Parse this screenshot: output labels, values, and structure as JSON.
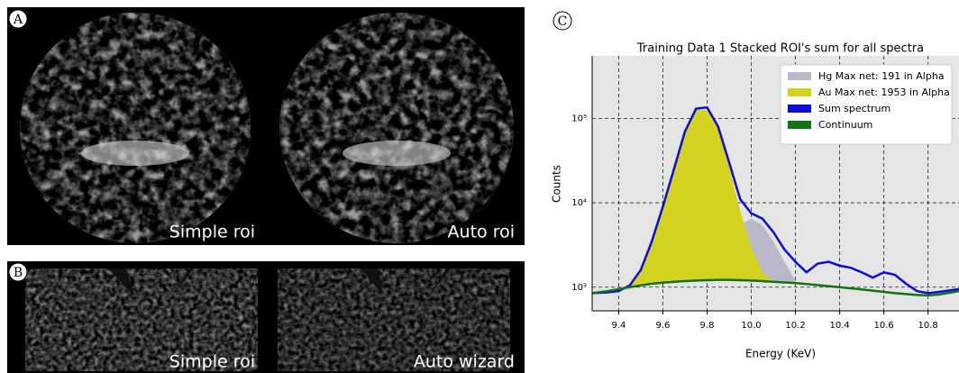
{
  "panels": {
    "a": {
      "label": "A",
      "captions": [
        "Simple roi",
        "Auto roi"
      ]
    },
    "b": {
      "label": "B",
      "captions": [
        "Simple roi",
        "Auto wizard"
      ]
    }
  },
  "chart_data": {
    "type": "line",
    "label": "C",
    "title": "Training Data 1 Stacked ROI's sum for all spectra",
    "x_label": "Energy (KeV)",
    "y_label": "Counts",
    "log_y": true,
    "grid": true,
    "legend": "upper right",
    "xlim": [
      9.28,
      10.94
    ],
    "ylim": [
      525,
      550000
    ],
    "xticks": [
      9.4,
      9.6,
      9.8,
      {
        "value": 10,
        "label": "10.0"
      },
      10.2,
      10.4,
      10.6,
      10.8
    ],
    "yticks": [
      {
        "value": 1000,
        "label": "10³"
      },
      {
        "value": 10000,
        "label": "10⁴"
      },
      {
        "value": 100000,
        "label": "10⁵"
      }
    ],
    "x": [
      9.28,
      9.35,
      9.4,
      9.45,
      9.5,
      9.55,
      9.6,
      9.65,
      9.7,
      9.75,
      9.8,
      9.85,
      9.9,
      9.95,
      10.0,
      10.05,
      10.1,
      10.15,
      10.2,
      10.25,
      10.3,
      10.35,
      10.4,
      10.45,
      10.5,
      10.55,
      10.6,
      10.65,
      10.7,
      10.75,
      10.8,
      10.85,
      10.94
    ],
    "series": [
      {
        "name": "Hg Max net: 191 in Alpha",
        "color": "#b9b9c9",
        "style": "area",
        "values": [
          null,
          null,
          null,
          null,
          null,
          null,
          null,
          null,
          null,
          null,
          1210,
          1500,
          3000,
          5500,
          6500,
          5500,
          3500,
          2000,
          1200,
          null,
          null,
          null,
          null,
          null,
          null,
          null,
          null,
          null,
          null,
          null,
          null,
          null,
          null
        ]
      },
      {
        "name": "Au Max net: 1953 in Alpha",
        "color": "#d3d21e",
        "style": "area",
        "values": [
          null,
          null,
          null,
          1000,
          1500,
          3400,
          8800,
          24000,
          68000,
          125000,
          128000,
          75000,
          27000,
          8000,
          3000,
          1500,
          1200,
          null,
          null,
          null,
          null,
          null,
          null,
          null,
          null,
          null,
          null,
          null,
          null,
          null,
          null,
          null,
          null
        ]
      },
      {
        "name": "Sum spectrum",
        "color": "#0b0bdc",
        "style": "line",
        "values": [
          850,
          870,
          900,
          1050,
          1600,
          3500,
          9000,
          25000,
          70000,
          130000,
          135000,
          80000,
          30000,
          11000,
          7500,
          6500,
          4500,
          2800,
          2000,
          1500,
          1900,
          2000,
          1800,
          1700,
          1500,
          1300,
          1500,
          1400,
          1100,
          900,
          850,
          880,
          950
        ]
      },
      {
        "name": "Continuum",
        "color": "#127312",
        "style": "line",
        "values": [
          850,
          900,
          950,
          1000,
          1050,
          1100,
          1130,
          1160,
          1180,
          1200,
          1210,
          1220,
          1220,
          1210,
          1200,
          1180,
          1160,
          1140,
          1120,
          1090,
          1060,
          1030,
          1000,
          970,
          940,
          910,
          880,
          850,
          830,
          810,
          800,
          820,
          900
        ]
      }
    ]
  }
}
